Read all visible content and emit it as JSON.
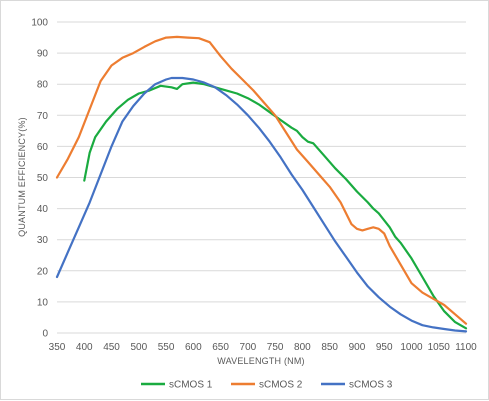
{
  "chart_data": {
    "type": "line",
    "title": "",
    "xlabel": "WAVELENGTH (NM)",
    "ylabel": "QUANTUM EFFICIENCY(%)",
    "xlim": [
      350,
      1100
    ],
    "ylim": [
      0,
      100
    ],
    "x_ticks": [
      350,
      400,
      450,
      500,
      550,
      600,
      650,
      700,
      750,
      800,
      850,
      900,
      950,
      1000,
      1050,
      1100
    ],
    "y_ticks": [
      0,
      10,
      20,
      30,
      40,
      50,
      60,
      70,
      80,
      90,
      100
    ],
    "grid": "horizontal",
    "legend_position": "bottom",
    "series": [
      {
        "name": "sCMOS 1",
        "color": "#1aab40",
        "points": [
          [
            400,
            49
          ],
          [
            410,
            58
          ],
          [
            420,
            63
          ],
          [
            440,
            68
          ],
          [
            460,
            72
          ],
          [
            480,
            75
          ],
          [
            500,
            77
          ],
          [
            520,
            78
          ],
          [
            540,
            79.5
          ],
          [
            560,
            79
          ],
          [
            570,
            78.5
          ],
          [
            580,
            80
          ],
          [
            600,
            80.5
          ],
          [
            620,
            80
          ],
          [
            640,
            79
          ],
          [
            660,
            78
          ],
          [
            680,
            77
          ],
          [
            700,
            75.5
          ],
          [
            720,
            73.5
          ],
          [
            740,
            71
          ],
          [
            760,
            68.5
          ],
          [
            780,
            66
          ],
          [
            790,
            65
          ],
          [
            800,
            63
          ],
          [
            810,
            61.5
          ],
          [
            820,
            61
          ],
          [
            840,
            57
          ],
          [
            860,
            53
          ],
          [
            880,
            49.5
          ],
          [
            900,
            45.5
          ],
          [
            920,
            42
          ],
          [
            930,
            40
          ],
          [
            940,
            38.5
          ],
          [
            960,
            34
          ],
          [
            970,
            31
          ],
          [
            980,
            29
          ],
          [
            1000,
            24
          ],
          [
            1020,
            18
          ],
          [
            1040,
            12
          ],
          [
            1060,
            7
          ],
          [
            1080,
            3.5
          ],
          [
            1100,
            1.5
          ]
        ]
      },
      {
        "name": "sCMOS 2",
        "color": "#ed7d31",
        "points": [
          [
            350,
            50
          ],
          [
            370,
            56
          ],
          [
            390,
            63
          ],
          [
            410,
            72
          ],
          [
            430,
            81
          ],
          [
            450,
            86
          ],
          [
            470,
            88.5
          ],
          [
            490,
            90
          ],
          [
            510,
            92
          ],
          [
            530,
            93.8
          ],
          [
            550,
            95
          ],
          [
            570,
            95.2
          ],
          [
            590,
            95
          ],
          [
            610,
            94.8
          ],
          [
            630,
            93.5
          ],
          [
            650,
            89
          ],
          [
            670,
            85
          ],
          [
            690,
            81.5
          ],
          [
            710,
            78
          ],
          [
            730,
            74
          ],
          [
            750,
            70
          ],
          [
            770,
            64.5
          ],
          [
            790,
            59
          ],
          [
            810,
            55
          ],
          [
            830,
            51
          ],
          [
            850,
            47
          ],
          [
            870,
            42
          ],
          [
            890,
            35
          ],
          [
            900,
            33.5
          ],
          [
            910,
            33
          ],
          [
            920,
            33.5
          ],
          [
            930,
            34
          ],
          [
            940,
            33.5
          ],
          [
            950,
            32
          ],
          [
            960,
            28
          ],
          [
            980,
            22
          ],
          [
            1000,
            16
          ],
          [
            1020,
            13
          ],
          [
            1040,
            11
          ],
          [
            1060,
            9
          ],
          [
            1080,
            6
          ],
          [
            1100,
            3
          ]
        ]
      },
      {
        "name": "sCMOS 3",
        "color": "#4472c4",
        "points": [
          [
            350,
            18
          ],
          [
            370,
            26
          ],
          [
            390,
            34
          ],
          [
            410,
            42
          ],
          [
            430,
            51
          ],
          [
            450,
            60
          ],
          [
            470,
            68
          ],
          [
            490,
            73
          ],
          [
            510,
            77
          ],
          [
            530,
            80
          ],
          [
            550,
            81.5
          ],
          [
            560,
            82
          ],
          [
            580,
            82
          ],
          [
            600,
            81.5
          ],
          [
            620,
            80.5
          ],
          [
            640,
            79
          ],
          [
            660,
            76.5
          ],
          [
            680,
            73.5
          ],
          [
            700,
            70
          ],
          [
            720,
            66
          ],
          [
            740,
            61.5
          ],
          [
            760,
            56.5
          ],
          [
            780,
            51
          ],
          [
            800,
            46
          ],
          [
            820,
            40.5
          ],
          [
            840,
            35
          ],
          [
            860,
            29.5
          ],
          [
            880,
            24.5
          ],
          [
            900,
            19.5
          ],
          [
            920,
            15
          ],
          [
            940,
            11.5
          ],
          [
            960,
            8.5
          ],
          [
            980,
            6
          ],
          [
            1000,
            4
          ],
          [
            1020,
            2.5
          ],
          [
            1040,
            1.8
          ],
          [
            1060,
            1.3
          ],
          [
            1080,
            0.8
          ],
          [
            1100,
            0.5
          ]
        ]
      }
    ]
  }
}
